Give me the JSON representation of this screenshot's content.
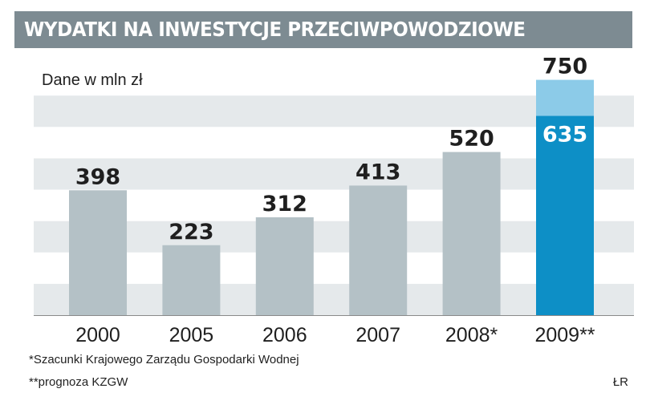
{
  "header": {
    "title": "WYDATKI NA INWESTYCJE PRZECIWPOWODZIOWE"
  },
  "chart_data": {
    "type": "bar",
    "title": "WYDATKI NA INWESTYCJE PRZECIWPOWODZIOWE",
    "subtitle": "Dane w mln zł",
    "categories": [
      "2000",
      "2005",
      "2006",
      "2007",
      "2008*",
      "2009**"
    ],
    "values": [
      398,
      223,
      312,
      413,
      520,
      750
    ],
    "value_labels": [
      "398",
      "223",
      "312",
      "413",
      "520",
      "750"
    ],
    "inner_value": {
      "category": "2009**",
      "value": 635,
      "label": "635"
    },
    "ylim": [
      0,
      800
    ],
    "grid": "alternating horizontal bands",
    "colors": {
      "bar": "#b4c1c6",
      "highlight_total": "#8ccbe8",
      "highlight_inner": "#0d8fc6",
      "band_dark": "#e5e9eb",
      "band_light": "#ffffff",
      "value_text": "#1f1f1f",
      "inner_value_text": "#ffffff"
    }
  },
  "footnotes": [
    "*Szacunki Krajowego Zarządu Gospodarki Wodnej",
    "**prognoza KZGW"
  ],
  "source": "ŁR"
}
